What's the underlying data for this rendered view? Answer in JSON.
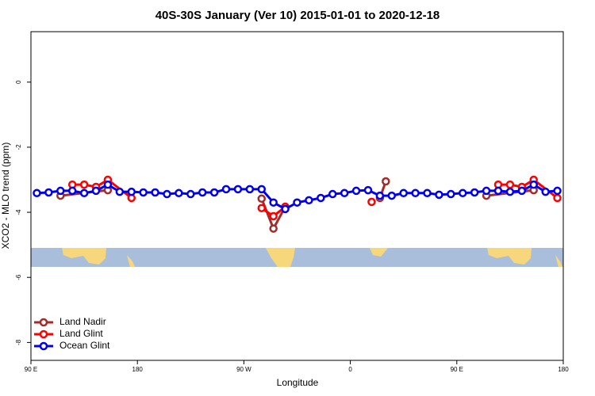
{
  "chart_data": {
    "type": "line",
    "title": "40S-30S January (Ver 10)   2015-01-01 to 2020-12-18",
    "xlabel": "Longitude",
    "ylabel": "XCO2 - MLO trend (ppm)",
    "xlim": [
      90,
      540
    ],
    "ylim": [
      -8.55,
      1.55
    ],
    "xticks": [
      {
        "value": 90,
        "label": "90 E"
      },
      180,
      {
        "value": 270,
        "label": "90 W"
      },
      {
        "value": 360,
        "label": "0"
      },
      {
        "value": 450,
        "label": "90 E"
      },
      {
        "value": 540,
        "label": "180"
      }
    ],
    "yticks": [
      0,
      -2,
      -4,
      -6,
      -8
    ],
    "legend": "lower left",
    "series": [
      {
        "name": "Land Nadir",
        "color": "#a52a2a",
        "x": [
          115,
          155,
          null,
          285,
          295,
          305,
          null,
          385,
          390,
          null,
          475,
          515
        ],
        "values": [
          -3.49,
          -3.32,
          null,
          -3.58,
          -4.5,
          -3.83,
          null,
          -3.56,
          -3.05,
          null,
          -3.49,
          -3.32
        ]
      },
      {
        "name": "Land Glint",
        "color": "#ff0000",
        "x": [
          125,
          135,
          145,
          155,
          175,
          null,
          285,
          295,
          305,
          null,
          378,
          null,
          485,
          495,
          505,
          515,
          535
        ],
        "values": [
          -3.15,
          -3.15,
          -3.22,
          -3.0,
          -3.56,
          null,
          -3.87,
          -4.12,
          -3.83,
          null,
          -3.68,
          null,
          -3.15,
          -3.15,
          -3.22,
          -3.0,
          -3.56
        ]
      },
      {
        "name": "Ocean Glint",
        "color": "#0000ee",
        "x": [
          95,
          105,
          115,
          125,
          135,
          145,
          155,
          165,
          175,
          185,
          195,
          205,
          215,
          225,
          235,
          245,
          255,
          265,
          275,
          285,
          295,
          305,
          315,
          325,
          335,
          345,
          355,
          365,
          375,
          385,
          395,
          405,
          415,
          425,
          435,
          445,
          455,
          465,
          475,
          485,
          495,
          505,
          515,
          525,
          535
        ],
        "values": [
          -3.41,
          -3.39,
          -3.34,
          -3.34,
          -3.41,
          -3.34,
          -3.15,
          -3.37,
          -3.37,
          -3.39,
          -3.39,
          -3.44,
          -3.41,
          -3.44,
          -3.39,
          -3.39,
          -3.29,
          -3.29,
          -3.29,
          -3.29,
          -3.7,
          -3.9,
          -3.7,
          -3.63,
          -3.56,
          -3.44,
          -3.41,
          -3.34,
          -3.32,
          -3.49,
          -3.49,
          -3.41,
          -3.41,
          -3.41,
          -3.46,
          -3.44,
          -3.41,
          -3.39,
          -3.34,
          -3.34,
          -3.37,
          -3.34,
          -3.15,
          -3.37,
          -3.34
        ]
      }
    ]
  }
}
